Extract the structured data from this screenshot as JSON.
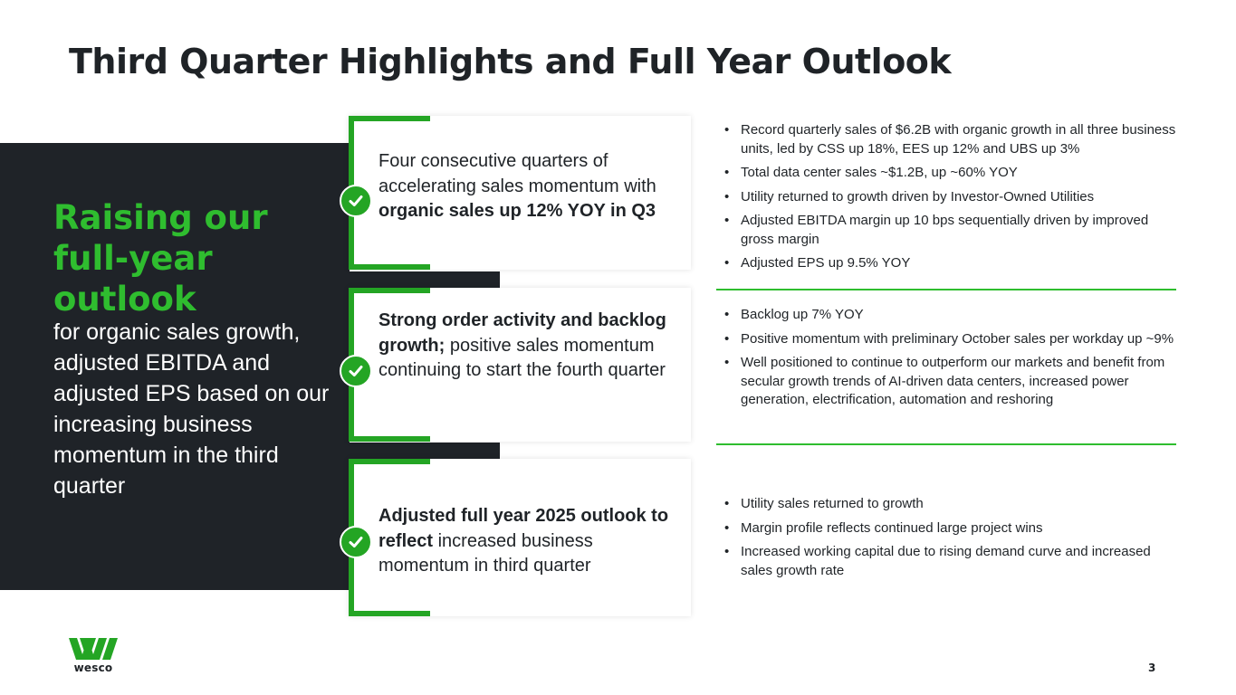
{
  "title": "Third Quarter Highlights and Full Year Outlook",
  "left_panel": {
    "headline": "Raising our full-year outlook",
    "subtext": "for organic sales growth, adjusted EBITDA and adjusted EPS based on our increasing business momentum in the third quarter"
  },
  "cards": [
    {
      "pre": "Four consecutive quarters of accelerating sales momentum with ",
      "bold": "organic sales up 12% YOY in Q3",
      "post": ""
    },
    {
      "pre": "",
      "bold": "Strong order activity and backlog growth;",
      "post": " positive sales momentum continuing to start the fourth quarter"
    },
    {
      "pre": "",
      "bold": "Adjusted full year 2025 outlook to reflect",
      "post": " increased business momentum in third quarter"
    }
  ],
  "bullets_group1": [
    "Record quarterly sales of $6.2B with organic growth in all three business units, led by CSS up 18%, EES up 12% and UBS up 3%",
    "Total data center sales ~$1.2B, up ~60% YOY",
    "Utility returned to growth driven by Investor-Owned Utilities",
    "Adjusted EBITDA margin up 10 bps sequentially driven by improved gross margin",
    "Adjusted EPS up 9.5% YOY"
  ],
  "bullets_group2": [
    "Backlog up 7% YOY",
    "Positive momentum with preliminary October sales per workday up ~9%",
    "Well positioned to continue to outperform our markets and benefit from secular growth trends of AI-driven data centers, increased power generation, electrification, automation and reshoring"
  ],
  "bullets_group3": [
    "Utility sales returned to growth",
    "Margin profile reflects continued large project wins",
    "Increased working capital due to rising demand curve and increased sales growth rate"
  ],
  "footer": {
    "logo_text": "wesco",
    "page_number": "3"
  },
  "colors": {
    "accent_green": "#24a524",
    "headline_green": "#2fbd2f",
    "dark_panel": "#1f2328"
  }
}
